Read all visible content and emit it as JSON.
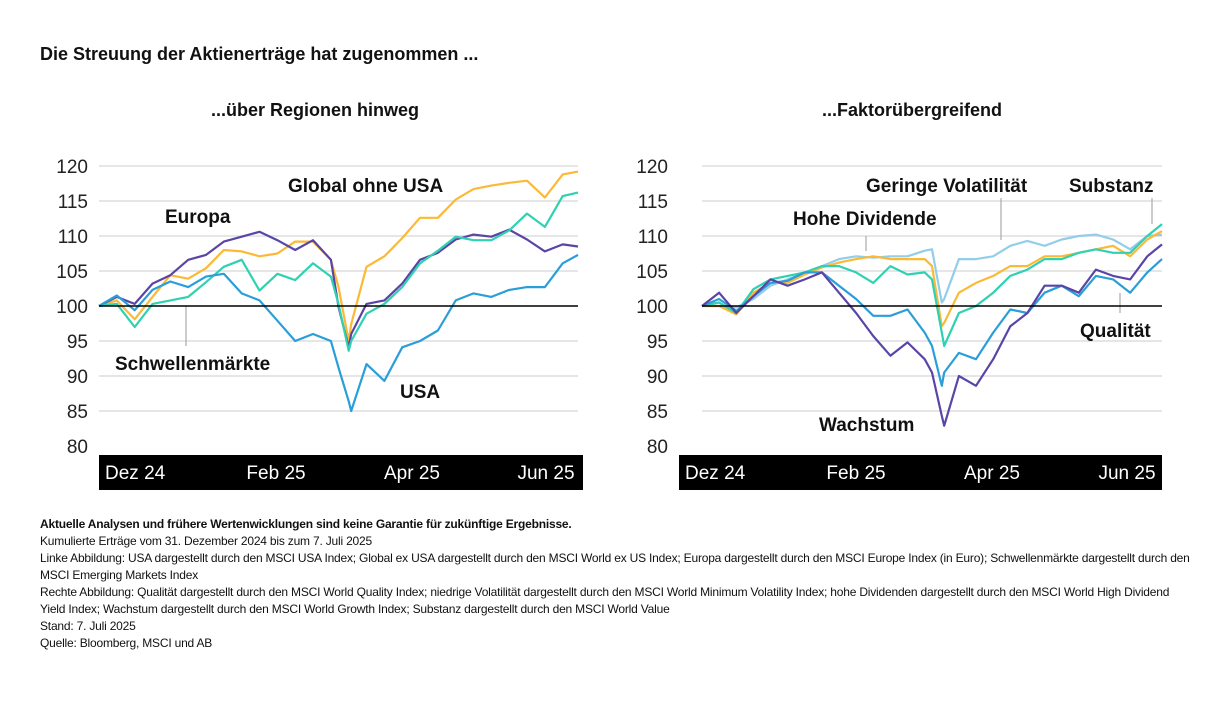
{
  "title": "Die Streuung der Aktienerträge hat zugenommen ...",
  "colors": {
    "yellow": "#fbb936",
    "purple": "#5a45a6",
    "teal": "#2fd1b2",
    "blue": "#2a9ed8",
    "lightblue": "#92cde9",
    "axis_band": "#000000",
    "grid": "#dddddd"
  },
  "chart_data": [
    {
      "type": "line",
      "title": "...über Regionen hinweg",
      "ylim": [
        80,
        120
      ],
      "yticks": [
        80,
        85,
        90,
        95,
        100,
        105,
        110,
        115,
        120
      ],
      "xtick_labels": [
        "Dez 24",
        "Feb 25",
        "Apr 25",
        "Jun 25"
      ],
      "grid": true,
      "baseline": 100,
      "x": [
        "2024-12-31",
        "2025-01-07",
        "2025-01-14",
        "2025-01-21",
        "2025-01-28",
        "2025-02-04",
        "2025-02-11",
        "2025-02-18",
        "2025-02-25",
        "2025-03-04",
        "2025-03-11",
        "2025-03-18",
        "2025-03-25",
        "2025-04-01",
        "2025-04-04",
        "2025-04-08",
        "2025-04-09",
        "2025-04-15",
        "2025-04-22",
        "2025-04-29",
        "2025-05-06",
        "2025-05-13",
        "2025-05-20",
        "2025-05-27",
        "2025-06-03",
        "2025-06-10",
        "2025-06-17",
        "2025-06-24",
        "2025-07-01",
        "2025-07-07"
      ],
      "series": [
        {
          "name": "Global ohne USA",
          "color": "#fbb936",
          "values": [
            100,
            100.8,
            98.1,
            101.3,
            104.4,
            103.9,
            105.4,
            108.0,
            107.8,
            107.1,
            107.5,
            109.2,
            109.2,
            106.6,
            102.7,
            95.0,
            97.4,
            105.6,
            107.1,
            109.7,
            112.6,
            112.6,
            115.2,
            116.7,
            117.2,
            117.6,
            117.9,
            115.5,
            118.8,
            119.2
          ]
        },
        {
          "name": "Europa",
          "color": "#5a45a6",
          "values": [
            100,
            101.3,
            100.3,
            103.2,
            104.4,
            106.6,
            107.3,
            109.2,
            109.9,
            110.6,
            109.4,
            108.0,
            109.4,
            106.6,
            99.9,
            94.1,
            96.0,
            100.3,
            100.8,
            103.2,
            106.6,
            107.6,
            109.5,
            110.2,
            109.9,
            110.9,
            109.5,
            107.8,
            108.8,
            108.5
          ]
        },
        {
          "name": "Schwellenmärkte",
          "color": "#2fd1b2",
          "values": [
            100,
            100.3,
            97.0,
            100.3,
            100.8,
            101.3,
            103.4,
            105.6,
            106.6,
            102.2,
            104.6,
            103.7,
            106.1,
            104.2,
            100.3,
            93.6,
            95.0,
            98.9,
            100.3,
            102.7,
            106.1,
            107.9,
            109.9,
            109.4,
            109.4,
            110.8,
            113.2,
            111.3,
            115.7,
            116.2
          ]
        },
        {
          "name": "USA",
          "color": "#2a9ed8",
          "values": [
            100,
            101.5,
            99.4,
            102.3,
            103.5,
            102.7,
            104.2,
            104.6,
            101.8,
            100.8,
            97.9,
            95.0,
            96.0,
            95.0,
            91.2,
            86.4,
            85.0,
            91.7,
            89.3,
            94.1,
            95.0,
            96.5,
            100.8,
            101.8,
            101.3,
            102.3,
            102.7,
            102.7,
            106.1,
            107.3
          ]
        }
      ]
    },
    {
      "type": "line",
      "title": "...Faktorübergreifend",
      "ylim": [
        80,
        120
      ],
      "yticks": [
        80,
        85,
        90,
        95,
        100,
        105,
        110,
        115,
        120
      ],
      "xtick_labels": [
        "Dez 24",
        "Feb 25",
        "Apr 25",
        "Jun 25"
      ],
      "grid": true,
      "baseline": 100,
      "x": [
        "2024-12-31",
        "2025-01-07",
        "2025-01-14",
        "2025-01-21",
        "2025-01-28",
        "2025-02-04",
        "2025-02-11",
        "2025-02-18",
        "2025-02-25",
        "2025-03-04",
        "2025-03-11",
        "2025-03-18",
        "2025-03-25",
        "2025-04-01",
        "2025-04-04",
        "2025-04-08",
        "2025-04-09",
        "2025-04-15",
        "2025-04-22",
        "2025-04-29",
        "2025-05-06",
        "2025-05-13",
        "2025-05-20",
        "2025-05-27",
        "2025-06-03",
        "2025-06-10",
        "2025-06-17",
        "2025-06-24",
        "2025-07-01",
        "2025-07-07"
      ],
      "series": [
        {
          "name": "Geringe Volatilität",
          "color": "#92cde9",
          "values": [
            100,
            100,
            99.8,
            101,
            102.9,
            103.8,
            104.8,
            105.7,
            106.7,
            107.1,
            106.9,
            107.1,
            107.1,
            107.9,
            108.1,
            100.5,
            101,
            106.7,
            106.7,
            107.1,
            108.6,
            109.3,
            108.6,
            109.5,
            110,
            110.2,
            109.5,
            108.1,
            110,
            110.2
          ]
        },
        {
          "name": "Hohe Dividende",
          "color": "#fbb936",
          "values": [
            100,
            100,
            98.8,
            101.9,
            103.3,
            103.3,
            104.5,
            105.5,
            106.2,
            106.7,
            107.1,
            106.7,
            106.7,
            106.7,
            105.7,
            97.1,
            97.6,
            101.9,
            103.3,
            104.3,
            105.7,
            105.7,
            107.1,
            107.1,
            107.6,
            108.1,
            108.6,
            107.1,
            109.5,
            110.7
          ]
        },
        {
          "name": "Substanz",
          "color": "#2fd1b2",
          "values": [
            100,
            100.5,
            99,
            102.4,
            103.8,
            104.3,
            104.8,
            105.7,
            105.7,
            104.8,
            103.3,
            105.7,
            104.5,
            104.8,
            103.8,
            96.2,
            94.3,
            99,
            100,
            101.9,
            104.3,
            105.2,
            106.7,
            106.7,
            107.6,
            108.1,
            107.6,
            107.6,
            110,
            111.7
          ]
        },
        {
          "name": "Qualität",
          "color": "#2a9ed8",
          "values": [
            100,
            101,
            99.3,
            101.4,
            103.3,
            103.6,
            104.8,
            104.8,
            102.9,
            101,
            98.6,
            98.6,
            99.5,
            96.2,
            94.3,
            88.6,
            90.5,
            93.3,
            92.4,
            96.2,
            99.5,
            99,
            101.9,
            102.9,
            101.4,
            104.3,
            103.8,
            101.9,
            104.8,
            106.7
          ]
        },
        {
          "name": "Wachstum",
          "color": "#5a45a6",
          "values": [
            100,
            101.9,
            99,
            101.4,
            103.8,
            102.9,
            103.8,
            104.8,
            101.9,
            99,
            95.7,
            92.9,
            94.8,
            92.4,
            90.5,
            84.3,
            82.9,
            90,
            88.6,
            92.4,
            97.1,
            99,
            102.9,
            102.9,
            101.9,
            105.2,
            104.3,
            103.8,
            107.1,
            108.8
          ]
        }
      ]
    }
  ],
  "notes": {
    "disclaimer": "Aktuelle Analysen und frühere Wertenwicklungen sind keine Garantie für zukünftige Ergebnisse.",
    "period": "Kumulierte Erträge vom 31. Dezember 2024 bis zum 7. Juli 2025",
    "left": "Linke Abbildung: USA dargestellt durch den MSCI USA Index; Global ex USA dargestellt durch den MSCI World ex US Index; Europa dargestellt durch den MSCI Europe Index (in Euro); Schwellenmärkte dargestellt durch den MSCI Emerging Markets Index",
    "right": "Rechte Abbildung: Qualität dargestellt durch den MSCI World Quality Index; niedrige Volatilität dargestellt durch den MSCI World Minimum Volatility Index; hohe Dividenden dargestellt durch den MSCI World High Dividend Yield Index; Wachstum dargestellt durch den MSCI World Growth Index; Substanz dargestellt durch den MSCI World Value",
    "date": "Stand: 7. Juli 2025",
    "source": "Quelle: Bloomberg, MSCI und AB"
  }
}
